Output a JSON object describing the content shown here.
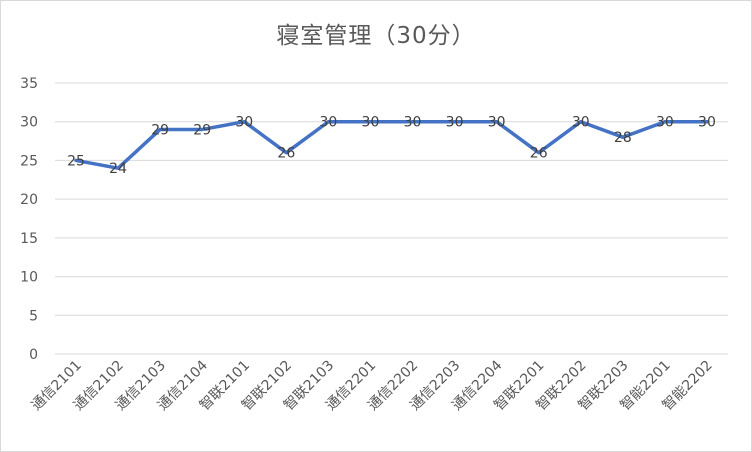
{
  "chart_data": {
    "type": "line",
    "title": "寝室管理（30分）",
    "categories": [
      "通信2101",
      "通信2102",
      "通信2103",
      "通信2104",
      "智联2101",
      "智联2102",
      "智联2103",
      "通信2201",
      "通信2202",
      "通信2203",
      "通信2204",
      "智联2201",
      "智联2202",
      "智联2203",
      "智能2201",
      "智能2202"
    ],
    "series": [
      {
        "values": [
          25,
          24,
          29,
          29,
          30,
          26,
          30,
          30,
          30,
          30,
          30,
          26,
          30,
          28,
          30,
          30
        ]
      }
    ],
    "ylim": [
      0,
      35
    ],
    "yticks": [
      0,
      5,
      10,
      15,
      20,
      25,
      30,
      35
    ],
    "grid": true,
    "legend": "none",
    "line_color": "#4472c4",
    "grid_color": "#d9d9d9"
  }
}
